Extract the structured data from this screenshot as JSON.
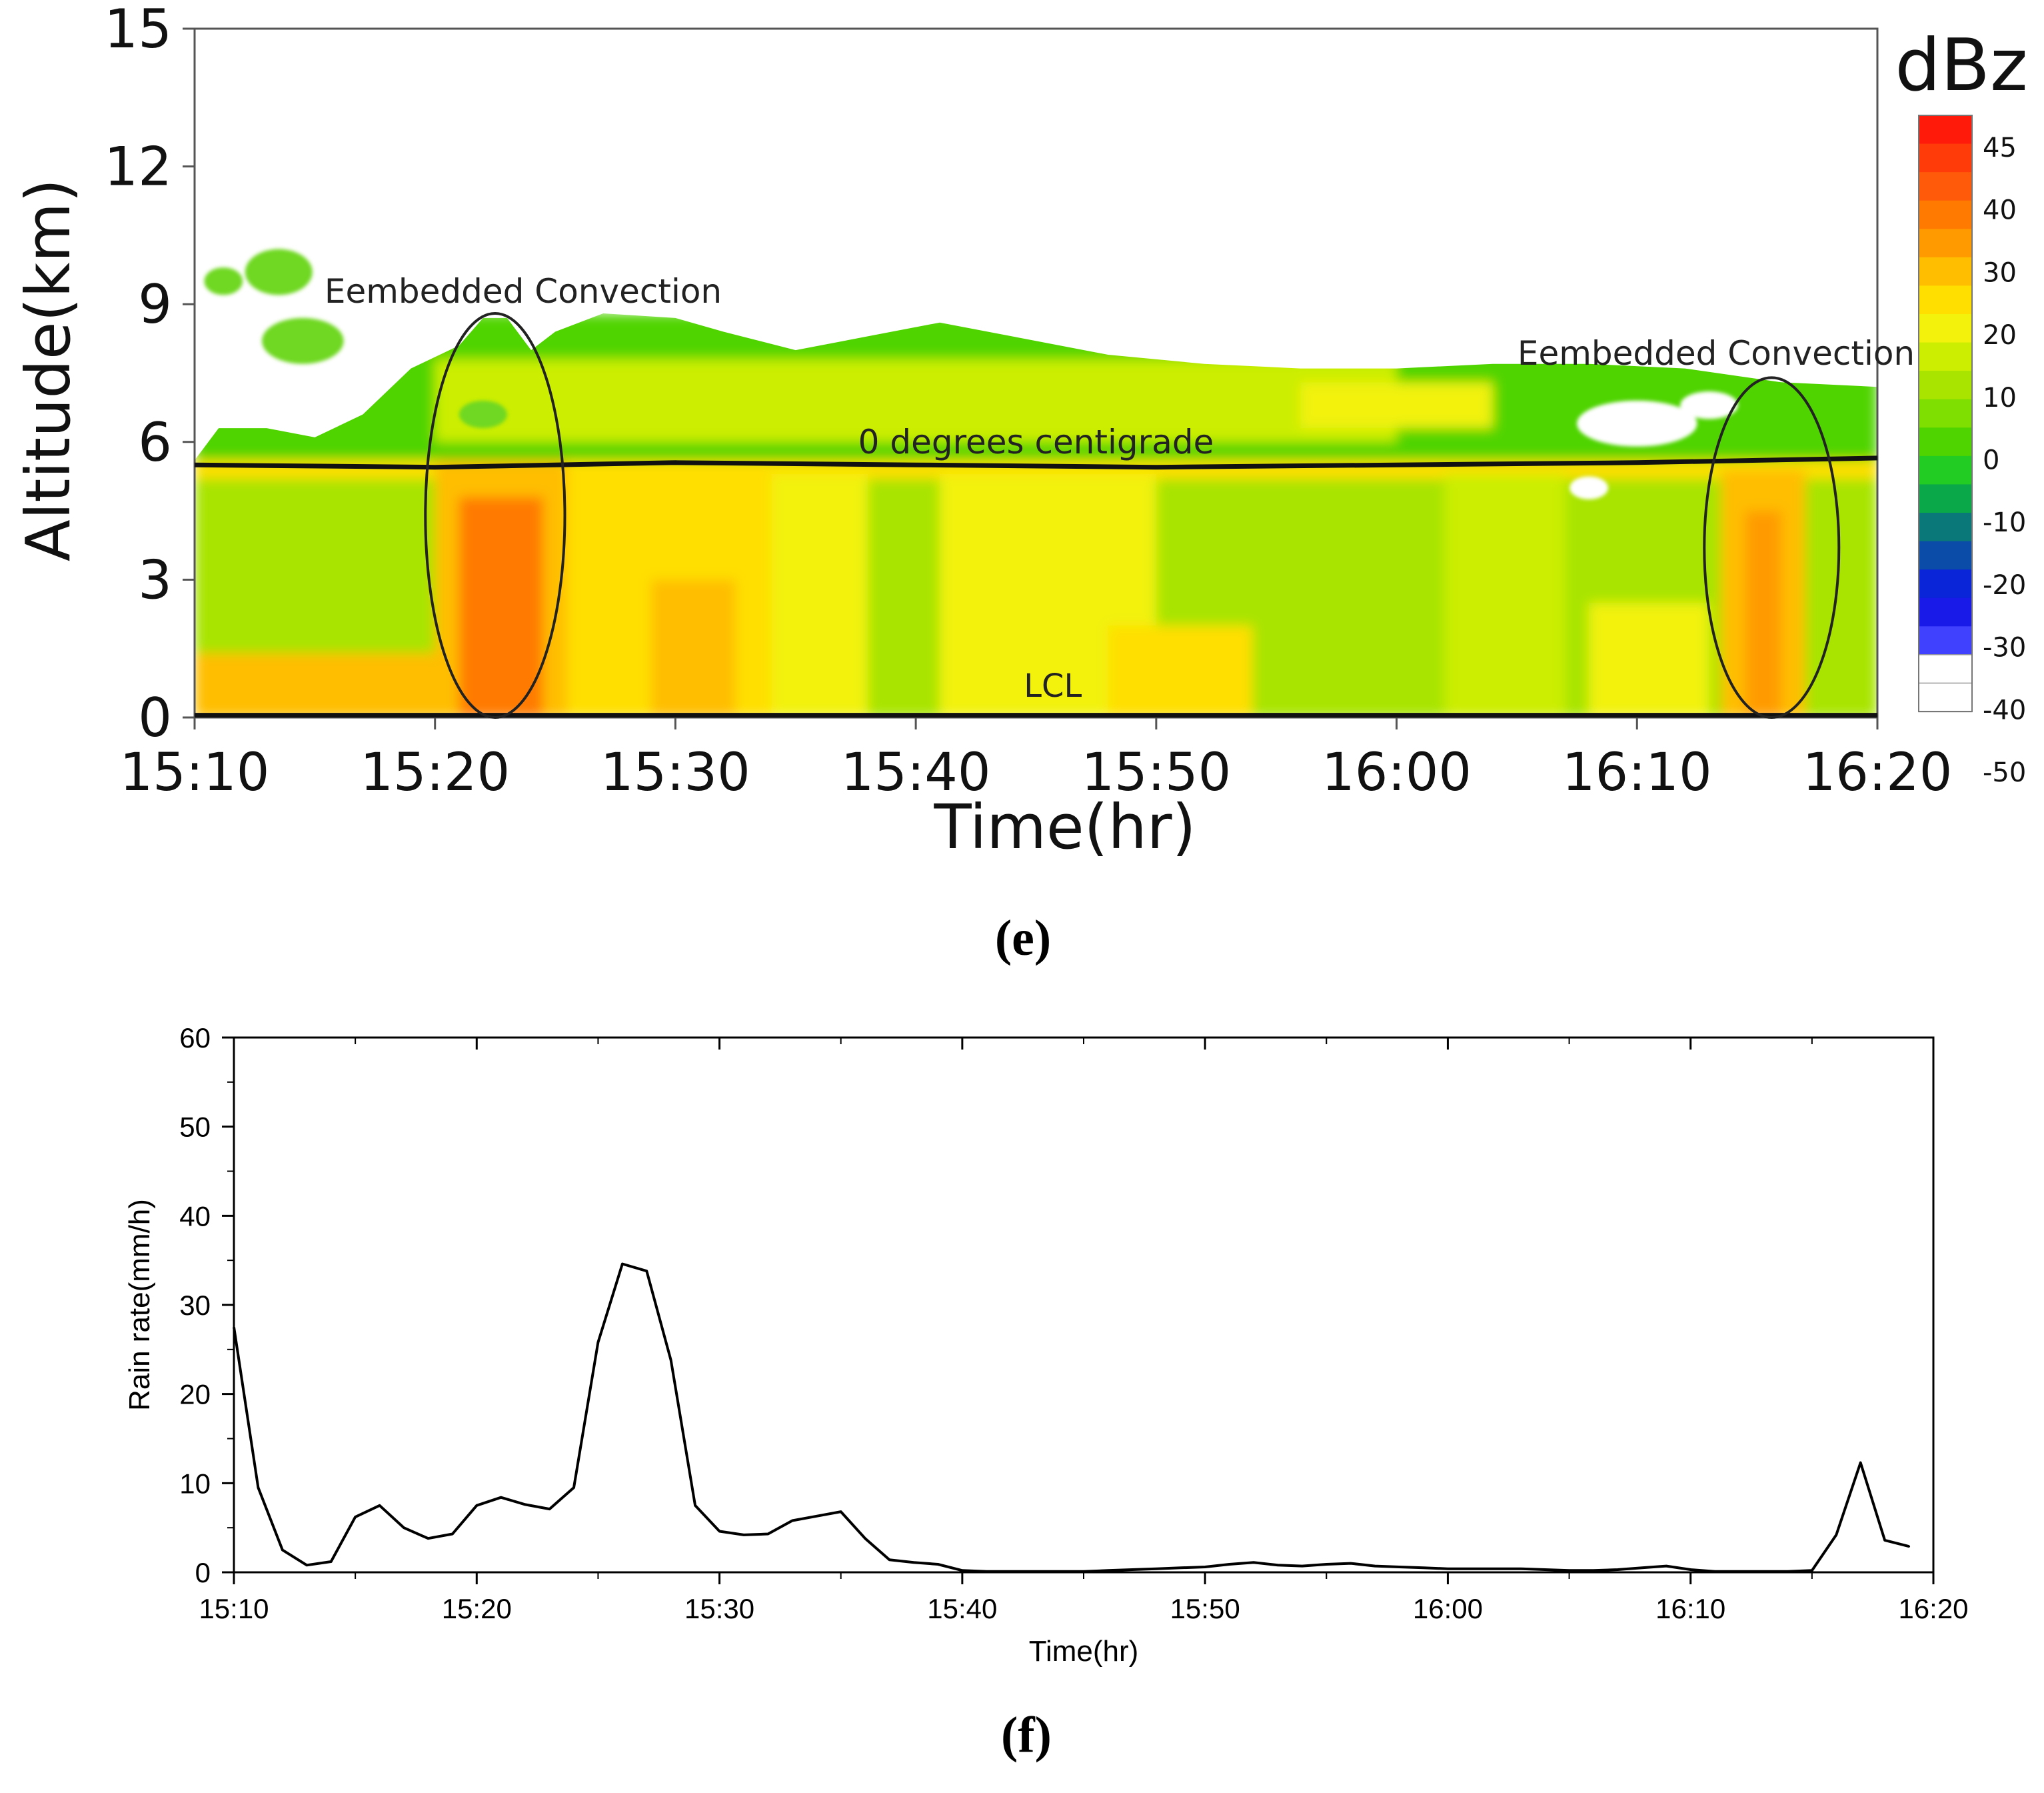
{
  "figure": {
    "panel_e_label": "(e)",
    "panel_f_label": "(f)"
  },
  "chart_data": [
    {
      "type": "heatmap",
      "panel": "e",
      "title": "",
      "xlabel": "Time(hr)",
      "ylabel": "Altitude(km)",
      "x_ticks": [
        "15:10",
        "15:20",
        "15:30",
        "15:40",
        "15:50",
        "16:00",
        "16:10",
        "16:20"
      ],
      "y_ticks": [
        "0",
        "3",
        "6",
        "9",
        "12",
        "15"
      ],
      "xlim_minutes": [
        0,
        70
      ],
      "ylim": [
        0,
        15
      ],
      "colorbar": {
        "title": "dBz",
        "ticks": [
          "45",
          "40",
          "30",
          "20",
          "10",
          "0",
          "-10",
          "-20",
          "-30",
          "-40",
          "-50"
        ],
        "colors": [
          "#ff1a0a",
          "#ff3b0a",
          "#ff5a0a",
          "#ff7a00",
          "#ff9b00",
          "#ffbe00",
          "#ffdf00",
          "#f2f20d",
          "#ccee00",
          "#a8e400",
          "#7fe000",
          "#4fd400",
          "#22cc22",
          "#0aa848",
          "#0a7878",
          "#0a4ca8",
          "#0a24d8",
          "#1a1ae8",
          "#4040ff",
          "#ffffff",
          "#ffffff"
        ]
      },
      "lines": [
        {
          "label": "0 degrees centigrade",
          "x_minutes": [
            0,
            10,
            20,
            30,
            40,
            50,
            60,
            70
          ],
          "y_km": [
            5.5,
            5.45,
            5.55,
            5.5,
            5.45,
            5.5,
            5.55,
            5.65
          ]
        },
        {
          "label": "LCL",
          "x_minutes": [
            0,
            70
          ],
          "y_km": [
            0.05,
            0.05
          ]
        }
      ],
      "annotations": [
        {
          "text": "Eembedded Convection",
          "center_minutes": 12.5,
          "center_km": 4.4,
          "half_width_minutes": 2.9,
          "half_height_km": 4.4
        },
        {
          "text": "Eembedded Convection",
          "center_minutes": 65.6,
          "center_km": 3.7,
          "half_width_minutes": 2.8,
          "half_height_km": 3.7
        }
      ],
      "cloud_top_km": [
        [
          0,
          5.6
        ],
        [
          1,
          6.3
        ],
        [
          3,
          6.3
        ],
        [
          5,
          6.1
        ],
        [
          7,
          6.6
        ],
        [
          9,
          7.6
        ],
        [
          11,
          8.1
        ],
        [
          12,
          8.7
        ],
        [
          13,
          8.7
        ],
        [
          14,
          8.0
        ],
        [
          15,
          8.4
        ],
        [
          17,
          8.8
        ],
        [
          20,
          8.7
        ],
        [
          22,
          8.4
        ],
        [
          25,
          8.0
        ],
        [
          28,
          8.3
        ],
        [
          31,
          8.6
        ],
        [
          34,
          8.3
        ],
        [
          38,
          7.9
        ],
        [
          42,
          7.7
        ],
        [
          46,
          7.6
        ],
        [
          50,
          7.6
        ],
        [
          54,
          7.7
        ],
        [
          58,
          7.7
        ],
        [
          62,
          7.6
        ],
        [
          66,
          7.3
        ],
        [
          70,
          7.2
        ]
      ],
      "reflectivity_cells": [
        {
          "x_minutes": [
            0,
            70
          ],
          "y_km": [
            0,
            5.6
          ],
          "dBz": 0
        },
        {
          "x_minutes": [
            0,
            70
          ],
          "y_km": [
            5.6,
            8.8
          ],
          "dBz": -8
        },
        {
          "x_minutes": [
            0,
            70
          ],
          "y_km": [
            5.2,
            5.6
          ],
          "dBz": 15
        },
        {
          "x_minutes": [
            0,
            10
          ],
          "y_km": [
            0,
            1.4
          ],
          "dBz": 20
        },
        {
          "x_minutes": [
            10,
            15.5
          ],
          "y_km": [
            0,
            5.6
          ],
          "dBz": 22
        },
        {
          "x_minutes": [
            11,
            14.5
          ],
          "y_km": [
            0,
            4.8
          ],
          "dBz": 32
        },
        {
          "x_minutes": [
            15.5,
            24
          ],
          "y_km": [
            0,
            5.3
          ],
          "dBz": 14
        },
        {
          "x_minutes": [
            19,
            22.5
          ],
          "y_km": [
            0,
            3.0
          ],
          "dBz": 22
        },
        {
          "x_minutes": [
            24,
            28
          ],
          "y_km": [
            0,
            5.3
          ],
          "dBz": 8
        },
        {
          "x_minutes": [
            31,
            40
          ],
          "y_km": [
            0,
            5.3
          ],
          "dBz": 10
        },
        {
          "x_minutes": [
            38,
            44
          ],
          "y_km": [
            0,
            2.0
          ],
          "dBz": 14
        },
        {
          "x_minutes": [
            52,
            57
          ],
          "y_km": [
            0,
            5.3
          ],
          "dBz": 4
        },
        {
          "x_minutes": [
            58,
            63
          ],
          "y_km": [
            0,
            2.5
          ],
          "dBz": 12
        },
        {
          "x_minutes": [
            63.5,
            67
          ],
          "y_km": [
            0,
            5.4
          ],
          "dBz": 20
        },
        {
          "x_minutes": [
            64.5,
            66
          ],
          "y_km": [
            0,
            4.5
          ],
          "dBz": 27
        },
        {
          "x_minutes": [
            10,
            50
          ],
          "y_km": [
            6.0,
            7.8
          ],
          "dBz": 4
        },
        {
          "x_minutes": [
            46,
            54
          ],
          "y_km": [
            6.3,
            7.3
          ],
          "dBz": 8
        }
      ]
    },
    {
      "type": "line",
      "panel": "f",
      "title": "",
      "xlabel": "Time(hr)",
      "ylabel": "Rain rate(mm/h)",
      "x_ticks": [
        "15:10",
        "15:20",
        "15:30",
        "15:40",
        "15:50",
        "16:00",
        "16:10",
        "16:20"
      ],
      "y_ticks": [
        "0",
        "10",
        "20",
        "30",
        "40",
        "50",
        "60"
      ],
      "xlim_minutes": [
        0,
        70
      ],
      "ylim": [
        0,
        60
      ],
      "series": [
        {
          "name": "Rain rate",
          "x_minutes": [
            0,
            1,
            2,
            3,
            4,
            5,
            6,
            7,
            8,
            9,
            10,
            11,
            12,
            13,
            14,
            15,
            16,
            17,
            18,
            19,
            20,
            21,
            22,
            23,
            24,
            25,
            26,
            27,
            28,
            29,
            30,
            31,
            32,
            33,
            34,
            35,
            36,
            37,
            38,
            39,
            40,
            41,
            42,
            43,
            44,
            45,
            46,
            47,
            48,
            49,
            50,
            51,
            52,
            53,
            54,
            55,
            56,
            57,
            58,
            59,
            60,
            61,
            62,
            63,
            64,
            65,
            66,
            67,
            68,
            69
          ],
          "values": [
            27.5,
            9.5,
            2.5,
            0.8,
            1.2,
            6.2,
            7.5,
            5.0,
            3.8,
            4.3,
            7.5,
            8.4,
            7.6,
            7.1,
            9.5,
            25.8,
            34.6,
            33.8,
            23.8,
            7.5,
            4.6,
            4.2,
            4.3,
            5.8,
            6.3,
            6.8,
            3.8,
            1.4,
            1.1,
            0.9,
            0.2,
            0.1,
            0.1,
            0.1,
            0.1,
            0.1,
            0.2,
            0.3,
            0.4,
            0.5,
            0.6,
            0.9,
            1.1,
            0.8,
            0.7,
            0.9,
            1.0,
            0.7,
            0.6,
            0.5,
            0.4,
            0.4,
            0.4,
            0.4,
            0.3,
            0.2,
            0.2,
            0.3,
            0.5,
            0.7,
            0.3,
            0.1,
            0.1,
            0.1,
            0.1,
            0.2,
            4.2,
            12.3,
            3.6,
            2.9
          ]
        }
      ]
    }
  ]
}
